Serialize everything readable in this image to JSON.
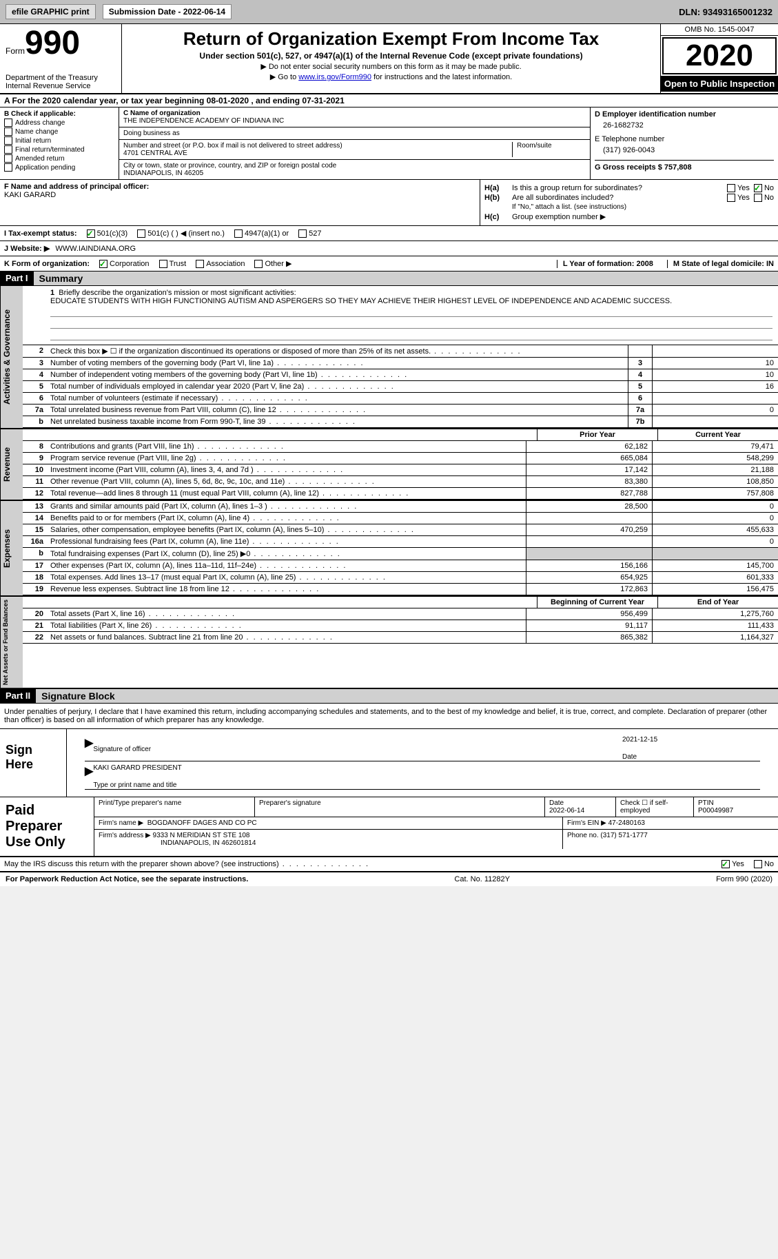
{
  "top_bar": {
    "efile_btn": "efile GRAPHIC print",
    "submission": "Submission Date - 2022-06-14",
    "dln": "DLN: 93493165001232"
  },
  "header": {
    "form_label": "Form",
    "form_num": "990",
    "title": "Return of Organization Exempt From Income Tax",
    "subtitle": "Under section 501(c), 527, or 4947(a)(1) of the Internal Revenue Code (except private foundations)",
    "instr1": "▶ Do not enter social security numbers on this form as it may be made public.",
    "instr2_pre": "▶ Go to ",
    "instr2_link": "www.irs.gov/Form990",
    "instr2_post": " for instructions and the latest information.",
    "omb": "OMB No. 1545-0047",
    "year": "2020",
    "open_public": "Open to Public Inspection",
    "dept": "Department of the Treasury Internal Revenue Service"
  },
  "line_a": "A For the 2020 calendar year, or tax year beginning 08-01-2020   , and ending 07-31-2021",
  "section_b": {
    "header": "B Check if applicable:",
    "addr_change": "Address change",
    "name_change": "Name change",
    "initial": "Initial return",
    "final": "Final return/terminated",
    "amended": "Amended return",
    "app_pending": "Application pending"
  },
  "section_c": {
    "name_label": "C Name of organization",
    "name": "THE INDEPENDENCE ACADEMY OF INDIANA INC",
    "dba_label": "Doing business as",
    "dba": "",
    "addr_label": "Number and street (or P.O. box if mail is not delivered to street address)",
    "addr": "4701 CENTRAL AVE",
    "room_label": "Room/suite",
    "city_label": "City or town, state or province, country, and ZIP or foreign postal code",
    "city": "INDIANAPOLIS, IN  46205"
  },
  "section_de": {
    "d_label": "D Employer identification number",
    "d_val": "26-1682732",
    "e_label": "E Telephone number",
    "e_val": "(317) 926-0043",
    "g_label": "G Gross receipts $ 757,808"
  },
  "section_fh": {
    "f_label": "F Name and address of principal officer:",
    "f_name": "KAKI GARARD",
    "ha_label": "H(a)",
    "ha_text": "Is this a group return for subordinates?",
    "hb_label": "H(b)",
    "hb_text": "Are all subordinates included?",
    "hb_note": "If \"No,\" attach a list. (see instructions)",
    "hc_label": "H(c)",
    "hc_text": "Group exemption number ▶",
    "yes": "Yes",
    "no": "No"
  },
  "status": {
    "label": "I     Tax-exempt status:",
    "c3": "501(c)(3)",
    "c": "501(c) (  ) ◀ (insert no.)",
    "a1": "4947(a)(1) or",
    "s527": "527"
  },
  "website": {
    "label": "J    Website: ▶",
    "val": "WWW.IAINDIANA.ORG"
  },
  "korg": {
    "k_label": "K Form of organization:",
    "corp": "Corporation",
    "trust": "Trust",
    "assoc": "Association",
    "other": "Other ▶",
    "l": "L Year of formation: 2008",
    "m": "M State of legal domicile: IN"
  },
  "part1": {
    "header": "Part I",
    "title": "Summary"
  },
  "mission": {
    "num": "1",
    "label": "Briefly describe the organization's mission or most significant activities:",
    "text": "EDUCATE STUDENTS WITH HIGH FUNCTIONING AUTISM AND ASPERGERS SO THEY MAY ACHIEVE THEIR HIGHEST LEVEL OF INDEPENDENCE AND ACADEMIC SUCCESS."
  },
  "gov_tab": "Activities & Governance",
  "rev_tab": "Revenue",
  "exp_tab": "Expenses",
  "net_tab": "Net Assets or Fund Balances",
  "gov_rows": [
    {
      "n": "2",
      "d": "Check this box ▶ ☐  if the organization discontinued its operations or disposed of more than 25% of its net assets.",
      "b": "",
      "v": ""
    },
    {
      "n": "3",
      "d": "Number of voting members of the governing body (Part VI, line 1a)",
      "b": "3",
      "v": "10"
    },
    {
      "n": "4",
      "d": "Number of independent voting members of the governing body (Part VI, line 1b)",
      "b": "4",
      "v": "10"
    },
    {
      "n": "5",
      "d": "Total number of individuals employed in calendar year 2020 (Part V, line 2a)",
      "b": "5",
      "v": "16"
    },
    {
      "n": "6",
      "d": "Total number of volunteers (estimate if necessary)",
      "b": "6",
      "v": ""
    },
    {
      "n": "7a",
      "d": "Total unrelated business revenue from Part VIII, column (C), line 12",
      "b": "7a",
      "v": "0"
    },
    {
      "n": "b",
      "d": "Net unrelated business taxable income from Form 990-T, line 39",
      "b": "7b",
      "v": ""
    }
  ],
  "col_prior": "Prior Year",
  "col_current": "Current Year",
  "rev_rows": [
    {
      "n": "8",
      "d": "Contributions and grants (Part VIII, line 1h)",
      "p": "62,182",
      "c": "79,471"
    },
    {
      "n": "9",
      "d": "Program service revenue (Part VIII, line 2g)",
      "p": "665,084",
      "c": "548,299"
    },
    {
      "n": "10",
      "d": "Investment income (Part VIII, column (A), lines 3, 4, and 7d )",
      "p": "17,142",
      "c": "21,188"
    },
    {
      "n": "11",
      "d": "Other revenue (Part VIII, column (A), lines 5, 6d, 8c, 9c, 10c, and 11e)",
      "p": "83,380",
      "c": "108,850"
    },
    {
      "n": "12",
      "d": "Total revenue—add lines 8 through 11 (must equal Part VIII, column (A), line 12)",
      "p": "827,788",
      "c": "757,808"
    }
  ],
  "exp_rows": [
    {
      "n": "13",
      "d": "Grants and similar amounts paid (Part IX, column (A), lines 1–3 )",
      "p": "28,500",
      "c": "0"
    },
    {
      "n": "14",
      "d": "Benefits paid to or for members (Part IX, column (A), line 4)",
      "p": "",
      "c": "0"
    },
    {
      "n": "15",
      "d": "Salaries, other compensation, employee benefits (Part IX, column (A), lines 5–10)",
      "p": "470,259",
      "c": "455,633"
    },
    {
      "n": "16a",
      "d": "Professional fundraising fees (Part IX, column (A), line 11e)",
      "p": "",
      "c": "0"
    },
    {
      "n": "b",
      "d": "Total fundraising expenses (Part IX, column (D), line 25) ▶0",
      "p": "GRAY",
      "c": "GRAY"
    },
    {
      "n": "17",
      "d": "Other expenses (Part IX, column (A), lines 11a–11d, 11f–24e)",
      "p": "156,166",
      "c": "145,700"
    },
    {
      "n": "18",
      "d": "Total expenses. Add lines 13–17 (must equal Part IX, column (A), line 25)",
      "p": "654,925",
      "c": "601,333"
    },
    {
      "n": "19",
      "d": "Revenue less expenses. Subtract line 18 from line 12",
      "p": "172,863",
      "c": "156,475"
    }
  ],
  "col_begin": "Beginning of Current Year",
  "col_end": "End of Year",
  "net_rows": [
    {
      "n": "20",
      "d": "Total assets (Part X, line 16)",
      "p": "956,499",
      "c": "1,275,760"
    },
    {
      "n": "21",
      "d": "Total liabilities (Part X, line 26)",
      "p": "91,117",
      "c": "111,433"
    },
    {
      "n": "22",
      "d": "Net assets or fund balances. Subtract line 21 from line 20",
      "p": "865,382",
      "c": "1,164,327"
    }
  ],
  "part2": {
    "header": "Part II",
    "title": "Signature Block"
  },
  "penalties": "Under penalties of perjury, I declare that I have examined this return, including accompanying schedules and statements, and to the best of my knowledge and belief, it is true, correct, and complete. Declaration of preparer (other than officer) is based on all information of which preparer has any knowledge.",
  "sign": {
    "label": "Sign Here",
    "sig_officer": "Signature of officer",
    "date_label": "Date",
    "date_val": "2021-12-15",
    "name_title": "KAKI GARARD  PRESIDENT",
    "type_label": "Type or print name and title"
  },
  "paid": {
    "label": "Paid Preparer Use Only",
    "print_name_label": "Print/Type preparer's name",
    "print_name": "",
    "sig_label": "Preparer's signature",
    "date_label": "Date",
    "date": "2022-06-14",
    "check_label": "Check ☐ if self-employed",
    "ptin_label": "PTIN",
    "ptin": "P00049987",
    "firm_name_label": "Firm's name    ▶",
    "firm_name": "BOGDANOFF DAGES AND CO PC",
    "firm_ein_label": "Firm's EIN ▶",
    "firm_ein": "47-2480163",
    "firm_addr_label": "Firm's address ▶",
    "firm_addr1": "9333 N MERIDIAN ST STE 108",
    "firm_addr2": "INDIANAPOLIS, IN  462601814",
    "phone_label": "Phone no.",
    "phone": "(317) 571-1777"
  },
  "discuss": {
    "text": "May the IRS discuss this return with the preparer shown above? (see instructions)",
    "yes": "Yes",
    "no": "No"
  },
  "footer": {
    "left": "For Paperwork Reduction Act Notice, see the separate instructions.",
    "mid": "Cat. No. 11282Y",
    "right": "Form 990 (2020)"
  }
}
